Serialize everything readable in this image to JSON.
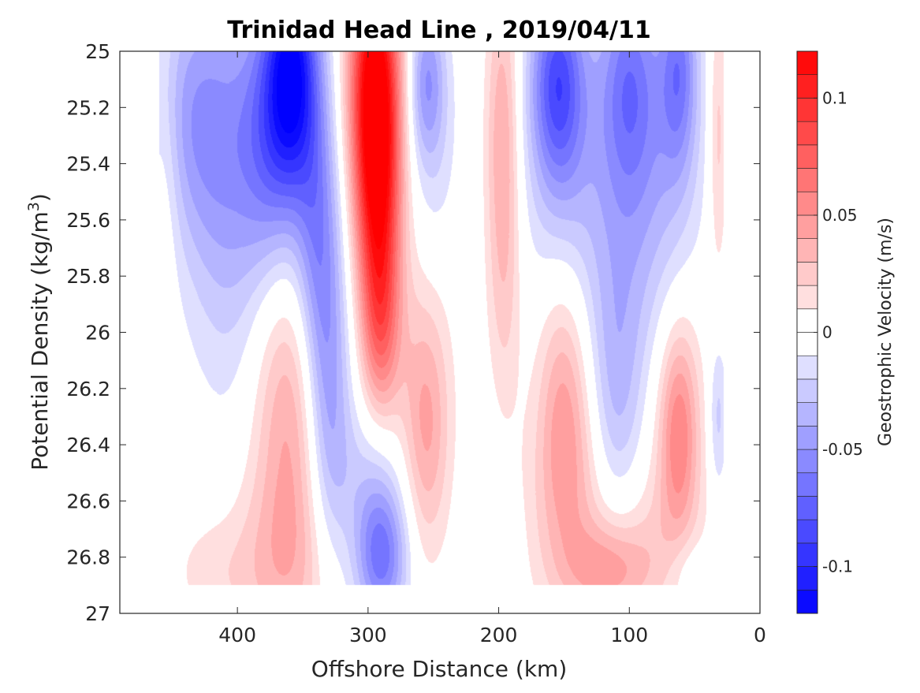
{
  "chart_data": {
    "type": "heatmap",
    "title": "Trinidad Head Line , 2019/04/11",
    "xlabel": "Offshore Distance (km)",
    "ylabel": "Potential Density (kg/m",
    "ylabel_sup": "3",
    "ylabel_end": ")",
    "xlim": [
      490,
      0
    ],
    "x_reversed": true,
    "ylim": [
      25,
      27
    ],
    "y_reversed": true,
    "x_ticks": [
      400,
      300,
      200,
      100,
      0
    ],
    "x_tick_labels": [
      "400",
      "300",
      "200",
      "100",
      "0"
    ],
    "y_ticks": [
      25,
      25.2,
      25.4,
      25.6,
      25.8,
      26,
      26.2,
      26.4,
      26.6,
      26.8,
      27
    ],
    "y_tick_labels": [
      "25",
      "25.2",
      "25.4",
      "25.6",
      "25.8",
      "26",
      "26.2",
      "26.4",
      "26.6",
      "26.8",
      "27"
    ],
    "grid": false,
    "colorbar": {
      "label": "Geostrophic Velocity (m/s)",
      "range": [
        -0.12,
        0.12
      ],
      "levels": [
        -0.12,
        -0.11,
        -0.1,
        -0.09,
        -0.08,
        -0.07,
        -0.06,
        -0.05,
        -0.04,
        -0.03,
        -0.02,
        -0.01,
        0,
        0.01,
        0.02,
        0.03,
        0.04,
        0.05,
        0.06,
        0.07,
        0.08,
        0.09,
        0.1,
        0.11,
        0.12
      ],
      "ticks": [
        0.1,
        0.05,
        0,
        -0.05,
        -0.1
      ],
      "tick_labels": [
        "0.1",
        "0.05",
        "0",
        "-0.05",
        "-0.1"
      ],
      "positive_color": "#ff0000",
      "negative_color": "#0000ff",
      "neutral_color": "#ffffff"
    },
    "data_extent": {
      "x": [
        460,
        28
      ],
      "y": [
        25,
        26.9
      ]
    },
    "features": [
      {
        "x": 455,
        "y": 25.4,
        "sx": 8,
        "sy": 0.35,
        "v": 0.015
      },
      {
        "x": 440,
        "y": 25.2,
        "sx": 25,
        "sy": 0.3,
        "v": -0.02
      },
      {
        "x": 420,
        "y": 25.3,
        "sx": 25,
        "sy": 0.4,
        "v": -0.035
      },
      {
        "x": 405,
        "y": 25.8,
        "sx": 20,
        "sy": 0.45,
        "v": -0.015
      },
      {
        "x": 375,
        "y": 25.3,
        "sx": 18,
        "sy": 0.35,
        "v": -0.055
      },
      {
        "x": 358,
        "y": 25.05,
        "sx": 14,
        "sy": 0.3,
        "v": -0.1
      },
      {
        "x": 340,
        "y": 25.6,
        "sx": 12,
        "sy": 0.4,
        "v": -0.045
      },
      {
        "x": 330,
        "y": 26.2,
        "sx": 12,
        "sy": 0.45,
        "v": -0.045
      },
      {
        "x": 295,
        "y": 25.1,
        "sx": 14,
        "sy": 0.35,
        "v": 0.12
      },
      {
        "x": 292,
        "y": 25.6,
        "sx": 12,
        "sy": 0.35,
        "v": 0.08
      },
      {
        "x": 290,
        "y": 26.0,
        "sx": 10,
        "sy": 0.22,
        "v": 0.035
      },
      {
        "x": 360,
        "y": 26.3,
        "sx": 20,
        "sy": 0.4,
        "v": 0.04
      },
      {
        "x": 365,
        "y": 26.85,
        "sx": 30,
        "sy": 0.25,
        "v": 0.025
      },
      {
        "x": 420,
        "y": 26.85,
        "sx": 25,
        "sy": 0.15,
        "v": 0.012
      },
      {
        "x": 290,
        "y": 26.8,
        "sx": 14,
        "sy": 0.18,
        "v": -0.065
      },
      {
        "x": 300,
        "y": 26.5,
        "sx": 20,
        "sy": 0.2,
        "v": -0.02
      },
      {
        "x": 255,
        "y": 25.1,
        "sx": 10,
        "sy": 0.2,
        "v": -0.045
      },
      {
        "x": 250,
        "y": 25.4,
        "sx": 14,
        "sy": 0.3,
        "v": -0.015
      },
      {
        "x": 255,
        "y": 26.35,
        "sx": 12,
        "sy": 0.3,
        "v": 0.035
      },
      {
        "x": 265,
        "y": 26.1,
        "sx": 22,
        "sy": 0.4,
        "v": 0.012
      },
      {
        "x": 197,
        "y": 25.3,
        "sx": 9,
        "sy": 0.4,
        "v": 0.04
      },
      {
        "x": 195,
        "y": 25.9,
        "sx": 9,
        "sy": 0.3,
        "v": 0.015
      },
      {
        "x": 195,
        "y": 26.8,
        "sx": 8,
        "sy": 0.15,
        "v": -0.012
      },
      {
        "x": 155,
        "y": 25.1,
        "sx": 14,
        "sy": 0.25,
        "v": -0.065
      },
      {
        "x": 150,
        "y": 25.35,
        "sx": 22,
        "sy": 0.4,
        "v": -0.03
      },
      {
        "x": 150,
        "y": 26.25,
        "sx": 14,
        "sy": 0.35,
        "v": 0.04
      },
      {
        "x": 145,
        "y": 26.6,
        "sx": 28,
        "sy": 0.3,
        "v": 0.018
      },
      {
        "x": 100,
        "y": 25.1,
        "sx": 16,
        "sy": 0.3,
        "v": -0.055
      },
      {
        "x": 100,
        "y": 25.7,
        "sx": 25,
        "sy": 0.45,
        "v": -0.03
      },
      {
        "x": 110,
        "y": 26.3,
        "sx": 14,
        "sy": 0.35,
        "v": -0.025
      },
      {
        "x": 115,
        "y": 26.85,
        "sx": 22,
        "sy": 0.12,
        "v": 0.035
      },
      {
        "x": 95,
        "y": 26.75,
        "sx": 35,
        "sy": 0.2,
        "v": 0.015
      },
      {
        "x": 62,
        "y": 25.05,
        "sx": 10,
        "sy": 0.25,
        "v": -0.05
      },
      {
        "x": 65,
        "y": 25.4,
        "sx": 18,
        "sy": 0.4,
        "v": -0.02
      },
      {
        "x": 62,
        "y": 26.35,
        "sx": 10,
        "sy": 0.25,
        "v": 0.045
      },
      {
        "x": 65,
        "y": 26.3,
        "sx": 18,
        "sy": 0.45,
        "v": 0.018
      },
      {
        "x": 32,
        "y": 25.3,
        "sx": 5,
        "sy": 0.35,
        "v": 0.025
      },
      {
        "x": 32,
        "y": 26.3,
        "sx": 5,
        "sy": 0.2,
        "v": -0.025
      },
      {
        "x": 55,
        "y": 26.85,
        "sx": 12,
        "sy": 0.1,
        "v": -0.015
      }
    ]
  }
}
